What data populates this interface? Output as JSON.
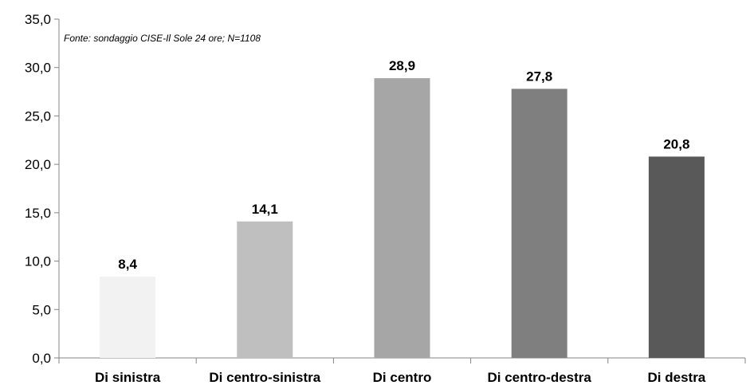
{
  "chart_data": {
    "type": "bar",
    "categories": [
      "Di sinistra",
      "Di centro-sinistra",
      "Di centro",
      "Di centro-destra",
      "Di destra"
    ],
    "values": [
      8.4,
      14.1,
      28.9,
      27.8,
      20.8
    ],
    "value_labels": [
      "8,4",
      "14,1",
      "28,9",
      "27,8",
      "20,8"
    ],
    "bar_colors": [
      "#f2f2f2",
      "#bfbfbf",
      "#a6a6a6",
      "#7f7f7f",
      "#595959"
    ],
    "ylim": [
      0,
      35
    ],
    "y_ticks": [
      0,
      5,
      10,
      15,
      20,
      25,
      30,
      35
    ],
    "y_tick_labels": [
      "0,0",
      "5,0",
      "10,0",
      "15,0",
      "20,0",
      "25,0",
      "30,0",
      "35,0"
    ],
    "grid": false,
    "note": "Fonte: sondaggio CISE-Il Sole 24 ore; N=1108"
  }
}
